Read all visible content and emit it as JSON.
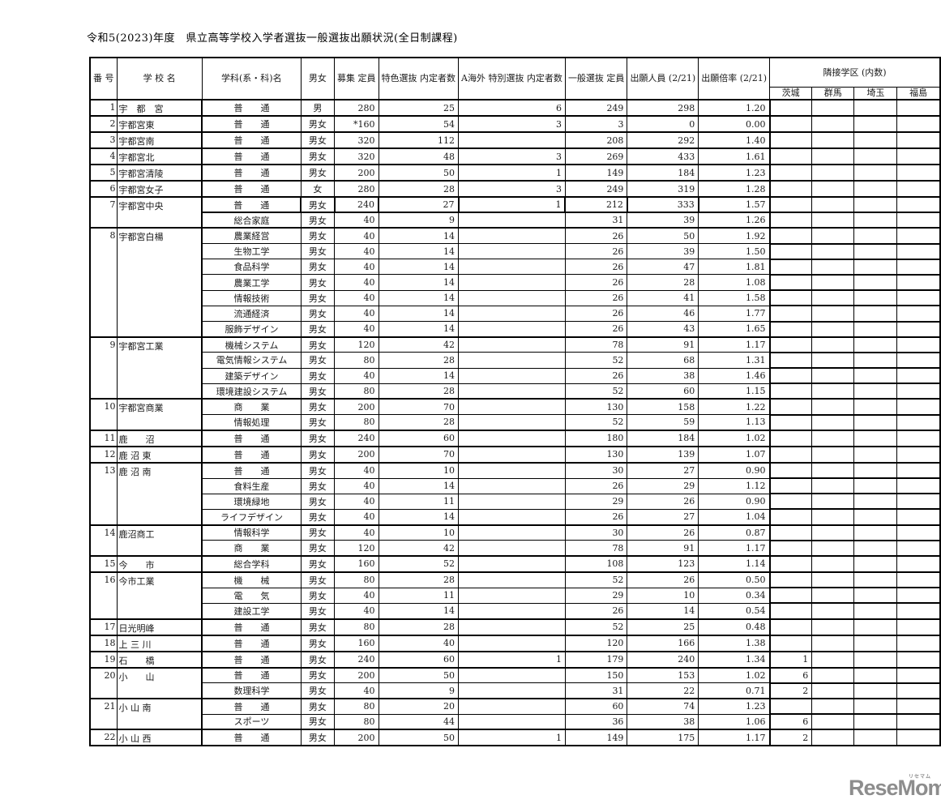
{
  "title": "令和5(2023)年度　県立高等学校入学者選抜一般選抜出願状況(全日制課程)",
  "table": {
    "headers": {
      "no": "番\n号",
      "school": "学 校 名",
      "dept": "学科(系・科)名",
      "gender": "男女",
      "capacity": "募集\n定員",
      "tokushoku": "特色選抜\n内定者数",
      "kaigai": "A海外\n特別選抜\n内定者数",
      "general": "一般選抜\n定員",
      "applicants": "出願人員\n(2/21)",
      "ratio": "出願倍率\n(2/21)"
    },
    "region": {
      "title": "隣接学区\n(内数)",
      "cols": [
        "茨城",
        "群馬",
        "埼玉",
        "福島"
      ]
    },
    "groups": [
      {
        "no": "1",
        "school": "宇　都　宮",
        "rows": [
          {
            "dept": "普　　通",
            "gender": "男",
            "capacity": "280",
            "tokushoku": "25",
            "kaigai": "6",
            "general": "249",
            "applicants": "298",
            "ratio": "1.20"
          }
        ]
      },
      {
        "no": "2",
        "school": "宇都宮東",
        "rows": [
          {
            "dept": "普　　通",
            "gender": "男女",
            "capacity": "*160",
            "tokushoku": "54",
            "kaigai": "3",
            "general": "3",
            "applicants": "0",
            "ratio": "0.00"
          }
        ]
      },
      {
        "no": "3",
        "school": "宇都宮南",
        "rows": [
          {
            "dept": "普　　通",
            "gender": "男女",
            "capacity": "320",
            "tokushoku": "112",
            "kaigai": "",
            "general": "208",
            "applicants": "292",
            "ratio": "1.40"
          }
        ]
      },
      {
        "no": "4",
        "school": "宇都宮北",
        "rows": [
          {
            "dept": "普　　通",
            "gender": "男女",
            "capacity": "320",
            "tokushoku": "48",
            "kaigai": "3",
            "general": "269",
            "applicants": "433",
            "ratio": "1.61"
          }
        ]
      },
      {
        "no": "5",
        "school": "宇都宮清陵",
        "rows": [
          {
            "dept": "普　　通",
            "gender": "男女",
            "capacity": "200",
            "tokushoku": "50",
            "kaigai": "1",
            "general": "149",
            "applicants": "184",
            "ratio": "1.23"
          }
        ]
      },
      {
        "no": "6",
        "school": "宇都宮女子",
        "rows": [
          {
            "dept": "普　　通",
            "gender": "女",
            "capacity": "280",
            "tokushoku": "28",
            "kaigai": "3",
            "general": "249",
            "applicants": "319",
            "ratio": "1.28"
          }
        ]
      },
      {
        "no": "7",
        "school": "宇都宮中央",
        "rows": [
          {
            "dept": "普　　通",
            "gender": "男女",
            "capacity": "240",
            "tokushoku": "27",
            "kaigai": "1",
            "general": "212",
            "applicants": "333",
            "ratio": "1.57",
            "bold_box": true
          },
          {
            "dept": "総合家庭",
            "gender": "男女",
            "capacity": "40",
            "tokushoku": "9",
            "kaigai": "",
            "general": "31",
            "applicants": "39",
            "ratio": "1.26"
          }
        ]
      },
      {
        "no": "8",
        "school": "宇都宮白楊",
        "rows": [
          {
            "dept": "農業経営",
            "gender": "男女",
            "capacity": "40",
            "tokushoku": "14",
            "kaigai": "",
            "general": "26",
            "applicants": "50",
            "ratio": "1.92"
          },
          {
            "dept": "生物工学",
            "gender": "男女",
            "capacity": "40",
            "tokushoku": "14",
            "kaigai": "",
            "general": "26",
            "applicants": "39",
            "ratio": "1.50"
          },
          {
            "dept": "食品科学",
            "gender": "男女",
            "capacity": "40",
            "tokushoku": "14",
            "kaigai": "",
            "general": "26",
            "applicants": "47",
            "ratio": "1.81"
          },
          {
            "dept": "農業工学",
            "gender": "男女",
            "capacity": "40",
            "tokushoku": "14",
            "kaigai": "",
            "general": "26",
            "applicants": "28",
            "ratio": "1.08"
          },
          {
            "dept": "情報技術",
            "gender": "男女",
            "capacity": "40",
            "tokushoku": "14",
            "kaigai": "",
            "general": "26",
            "applicants": "41",
            "ratio": "1.58"
          },
          {
            "dept": "流通経済",
            "gender": "男女",
            "capacity": "40",
            "tokushoku": "14",
            "kaigai": "",
            "general": "26",
            "applicants": "46",
            "ratio": "1.77"
          },
          {
            "dept": "服飾デザイン",
            "gender": "男女",
            "capacity": "40",
            "tokushoku": "14",
            "kaigai": "",
            "general": "26",
            "applicants": "43",
            "ratio": "1.65"
          }
        ]
      },
      {
        "no": "9",
        "school": "宇都宮工業",
        "rows": [
          {
            "dept": "機械システム",
            "gender": "男女",
            "capacity": "120",
            "tokushoku": "42",
            "kaigai": "",
            "general": "78",
            "applicants": "91",
            "ratio": "1.17"
          },
          {
            "dept": "電気情報システム",
            "gender": "男女",
            "capacity": "80",
            "tokushoku": "28",
            "kaigai": "",
            "general": "52",
            "applicants": "68",
            "ratio": "1.31"
          },
          {
            "dept": "建築デザイン",
            "gender": "男女",
            "capacity": "40",
            "tokushoku": "14",
            "kaigai": "",
            "general": "26",
            "applicants": "38",
            "ratio": "1.46"
          },
          {
            "dept": "環境建設システム",
            "gender": "男女",
            "capacity": "80",
            "tokushoku": "28",
            "kaigai": "",
            "general": "52",
            "applicants": "60",
            "ratio": "1.15"
          }
        ]
      },
      {
        "no": "10",
        "school": "宇都宮商業",
        "rows": [
          {
            "dept": "商　　業",
            "gender": "男女",
            "capacity": "200",
            "tokushoku": "70",
            "kaigai": "",
            "general": "130",
            "applicants": "158",
            "ratio": "1.22"
          },
          {
            "dept": "情報処理",
            "gender": "男女",
            "capacity": "80",
            "tokushoku": "28",
            "kaigai": "",
            "general": "52",
            "applicants": "59",
            "ratio": "1.13"
          }
        ]
      },
      {
        "no": "11",
        "school": "鹿　　沼",
        "rows": [
          {
            "dept": "普　　通",
            "gender": "男女",
            "capacity": "240",
            "tokushoku": "60",
            "kaigai": "",
            "general": "180",
            "applicants": "184",
            "ratio": "1.02"
          }
        ]
      },
      {
        "no": "12",
        "school": "鹿 沼 東",
        "rows": [
          {
            "dept": "普　　通",
            "gender": "男女",
            "capacity": "200",
            "tokushoku": "70",
            "kaigai": "",
            "general": "130",
            "applicants": "139",
            "ratio": "1.07"
          }
        ]
      },
      {
        "no": "13",
        "school": "鹿 沼 南",
        "rows": [
          {
            "dept": "普　　通",
            "gender": "男女",
            "capacity": "40",
            "tokushoku": "10",
            "kaigai": "",
            "general": "30",
            "applicants": "27",
            "ratio": "0.90"
          },
          {
            "dept": "食料生産",
            "gender": "男女",
            "capacity": "40",
            "tokushoku": "14",
            "kaigai": "",
            "general": "26",
            "applicants": "29",
            "ratio": "1.12"
          },
          {
            "dept": "環境緑地",
            "gender": "男女",
            "capacity": "40",
            "tokushoku": "11",
            "kaigai": "",
            "general": "29",
            "applicants": "26",
            "ratio": "0.90"
          },
          {
            "dept": "ライフデザイン",
            "gender": "男女",
            "capacity": "40",
            "tokushoku": "14",
            "kaigai": "",
            "general": "26",
            "applicants": "27",
            "ratio": "1.04"
          }
        ]
      },
      {
        "no": "14",
        "school": "鹿沼商工",
        "rows": [
          {
            "dept": "情報科学",
            "gender": "男女",
            "capacity": "40",
            "tokushoku": "10",
            "kaigai": "",
            "general": "30",
            "applicants": "26",
            "ratio": "0.87"
          },
          {
            "dept": "商　　業",
            "gender": "男女",
            "capacity": "120",
            "tokushoku": "42",
            "kaigai": "",
            "general": "78",
            "applicants": "91",
            "ratio": "1.17"
          }
        ]
      },
      {
        "no": "15",
        "school": "今　　市",
        "rows": [
          {
            "dept": "総合学科",
            "gender": "男女",
            "capacity": "160",
            "tokushoku": "52",
            "kaigai": "",
            "general": "108",
            "applicants": "123",
            "ratio": "1.14"
          }
        ]
      },
      {
        "no": "16",
        "school": "今市工業",
        "rows": [
          {
            "dept": "機　　械",
            "gender": "男女",
            "capacity": "80",
            "tokushoku": "28",
            "kaigai": "",
            "general": "52",
            "applicants": "26",
            "ratio": "0.50"
          },
          {
            "dept": "電　　気",
            "gender": "男女",
            "capacity": "40",
            "tokushoku": "11",
            "kaigai": "",
            "general": "29",
            "applicants": "10",
            "ratio": "0.34"
          },
          {
            "dept": "建設工学",
            "gender": "男女",
            "capacity": "40",
            "tokushoku": "14",
            "kaigai": "",
            "general": "26",
            "applicants": "14",
            "ratio": "0.54"
          }
        ]
      },
      {
        "no": "17",
        "school": "日光明峰",
        "rows": [
          {
            "dept": "普　　通",
            "gender": "男女",
            "capacity": "80",
            "tokushoku": "28",
            "kaigai": "",
            "general": "52",
            "applicants": "25",
            "ratio": "0.48"
          }
        ]
      },
      {
        "no": "18",
        "school": "上 三 川",
        "rows": [
          {
            "dept": "普　　通",
            "gender": "男女",
            "capacity": "160",
            "tokushoku": "40",
            "kaigai": "",
            "general": "120",
            "applicants": "166",
            "ratio": "1.38"
          }
        ]
      },
      {
        "no": "19",
        "school": "石　　橋",
        "rows": [
          {
            "dept": "普　　通",
            "gender": "男女",
            "capacity": "240",
            "tokushoku": "60",
            "kaigai": "1",
            "general": "179",
            "applicants": "240",
            "ratio": "1.34",
            "ibaraki": "1"
          }
        ]
      },
      {
        "no": "20",
        "school": "小　　山",
        "rows": [
          {
            "dept": "普　　通",
            "gender": "男女",
            "capacity": "200",
            "tokushoku": "50",
            "kaigai": "",
            "general": "150",
            "applicants": "153",
            "ratio": "1.02",
            "ibaraki": "6"
          },
          {
            "dept": "数理科学",
            "gender": "男女",
            "capacity": "40",
            "tokushoku": "9",
            "kaigai": "",
            "general": "31",
            "applicants": "22",
            "ratio": "0.71",
            "ibaraki": "2"
          }
        ]
      },
      {
        "no": "21",
        "school": "小 山 南",
        "rows": [
          {
            "dept": "普　　通",
            "gender": "男女",
            "capacity": "80",
            "tokushoku": "20",
            "kaigai": "",
            "general": "60",
            "applicants": "74",
            "ratio": "1.23"
          },
          {
            "dept": "スポーツ",
            "gender": "男女",
            "capacity": "80",
            "tokushoku": "44",
            "kaigai": "",
            "general": "36",
            "applicants": "38",
            "ratio": "1.06",
            "ibaraki": "6"
          }
        ]
      },
      {
        "no": "22",
        "school": "小 山 西",
        "rows": [
          {
            "dept": "普　　通",
            "gender": "男女",
            "capacity": "200",
            "tokushoku": "50",
            "kaigai": "1",
            "general": "149",
            "applicants": "175",
            "ratio": "1.17",
            "ibaraki": "2"
          }
        ]
      }
    ]
  },
  "logo": {
    "text": "ReseMom.",
    "ruby": "リセマム",
    "color": "#8d8d8d"
  }
}
